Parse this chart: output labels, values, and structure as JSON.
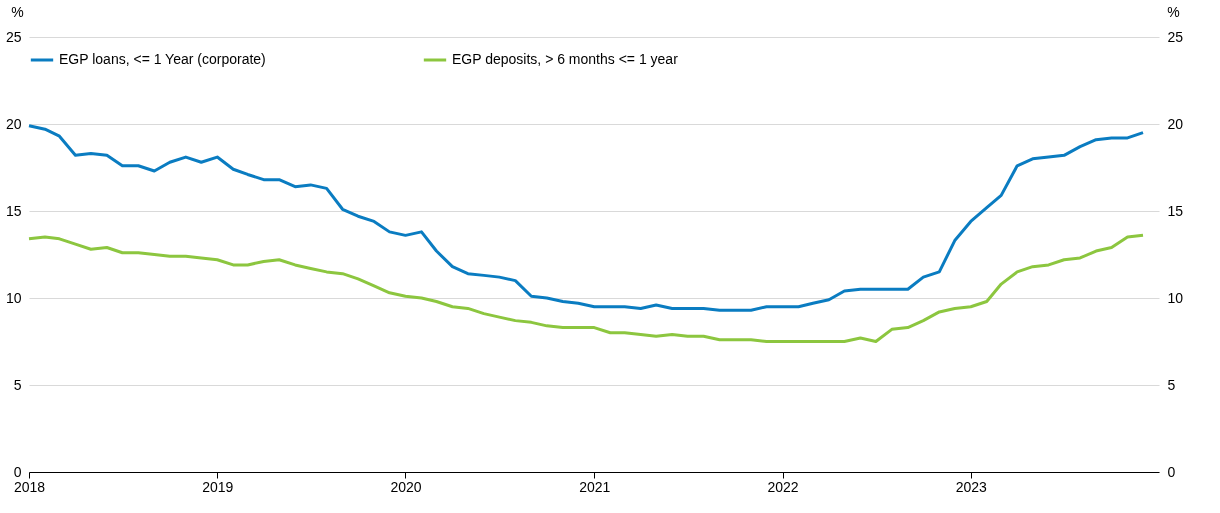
{
  "chart_data": {
    "type": "line",
    "ylabel": "%",
    "y2label": "%",
    "x": [
      "2018-01",
      "2018-02",
      "2018-03",
      "2018-04",
      "2018-05",
      "2018-06",
      "2018-07",
      "2018-08",
      "2018-09",
      "2018-10",
      "2018-11",
      "2018-12",
      "2019-01",
      "2019-02",
      "2019-03",
      "2019-04",
      "2019-05",
      "2019-06",
      "2019-07",
      "2019-08",
      "2019-09",
      "2019-10",
      "2019-11",
      "2019-12",
      "2020-01",
      "2020-02",
      "2020-03",
      "2020-04",
      "2020-05",
      "2020-06",
      "2020-07",
      "2020-08",
      "2020-09",
      "2020-10",
      "2020-11",
      "2020-12",
      "2021-01",
      "2021-02",
      "2021-03",
      "2021-04",
      "2021-05",
      "2021-06",
      "2021-07",
      "2021-08",
      "2021-09",
      "2021-10",
      "2021-11",
      "2021-12",
      "2022-01",
      "2022-02",
      "2022-03",
      "2022-04",
      "2022-05",
      "2022-06",
      "2022-07",
      "2022-08",
      "2022-09",
      "2022-10",
      "2022-11",
      "2022-12",
      "2023-01",
      "2023-02",
      "2023-03",
      "2023-04",
      "2023-05",
      "2023-06",
      "2023-07",
      "2023-08",
      "2023-09",
      "2023-10",
      "2023-11",
      "2023-12"
    ],
    "series": [
      {
        "name": "EGP loans, <= 1 Year (corporate)",
        "color": "#0a7cc1",
        "values": [
          19.9,
          19.7,
          19.3,
          18.2,
          18.3,
          18.2,
          17.6,
          17.6,
          17.3,
          17.8,
          18.1,
          17.8,
          18.1,
          17.4,
          17.1,
          16.8,
          16.8,
          16.4,
          16.5,
          16.3,
          15.1,
          14.7,
          14.4,
          13.8,
          13.6,
          13.8,
          12.7,
          11.8,
          11.4,
          11.3,
          11.2,
          11.0,
          10.1,
          10.0,
          9.8,
          9.7,
          9.5,
          9.5,
          9.5,
          9.4,
          9.6,
          9.4,
          9.4,
          9.4,
          9.3,
          9.3,
          9.3,
          9.5,
          9.5,
          9.5,
          9.7,
          9.9,
          10.4,
          10.5,
          10.5,
          10.5,
          10.5,
          11.2,
          11.5,
          13.3,
          14.4,
          15.2,
          15.9,
          17.6,
          18.0,
          18.1,
          18.2,
          18.7,
          19.1,
          19.2,
          19.2,
          19.5
        ]
      },
      {
        "name": "EGP deposits, > 6 months <= 1 year",
        "color": "#8cc63f",
        "values": [
          13.4,
          13.5,
          13.4,
          13.1,
          12.8,
          12.9,
          12.6,
          12.6,
          12.5,
          12.4,
          12.4,
          12.3,
          12.2,
          11.9,
          11.9,
          12.1,
          12.2,
          11.9,
          11.7,
          11.5,
          11.4,
          11.1,
          10.7,
          10.3,
          10.1,
          10.0,
          9.8,
          9.5,
          9.4,
          9.1,
          8.9,
          8.7,
          8.6,
          8.4,
          8.3,
          8.3,
          8.3,
          8.0,
          8.0,
          7.9,
          7.8,
          7.9,
          7.8,
          7.8,
          7.6,
          7.6,
          7.6,
          7.5,
          7.5,
          7.5,
          7.5,
          7.5,
          7.5,
          7.7,
          7.5,
          8.2,
          8.3,
          8.7,
          9.2,
          9.4,
          9.5,
          9.8,
          10.8,
          11.5,
          11.8,
          11.9,
          12.2,
          12.3,
          12.7,
          12.9,
          13.5,
          13.6
        ]
      }
    ],
    "xlim": [
      "2018-01",
      "2024-01"
    ],
    "xticks": [
      "2018",
      "2019",
      "2020",
      "2021",
      "2022",
      "2023"
    ],
    "ylim": [
      0,
      25
    ],
    "yticks": [
      0,
      5,
      10,
      15,
      20,
      25
    ],
    "y2lim": [
      0,
      25
    ],
    "y2ticks": [
      0,
      5,
      10,
      15,
      20,
      25
    ],
    "grid": "y",
    "legend": "top",
    "line_style": "solid",
    "marker": "none"
  }
}
